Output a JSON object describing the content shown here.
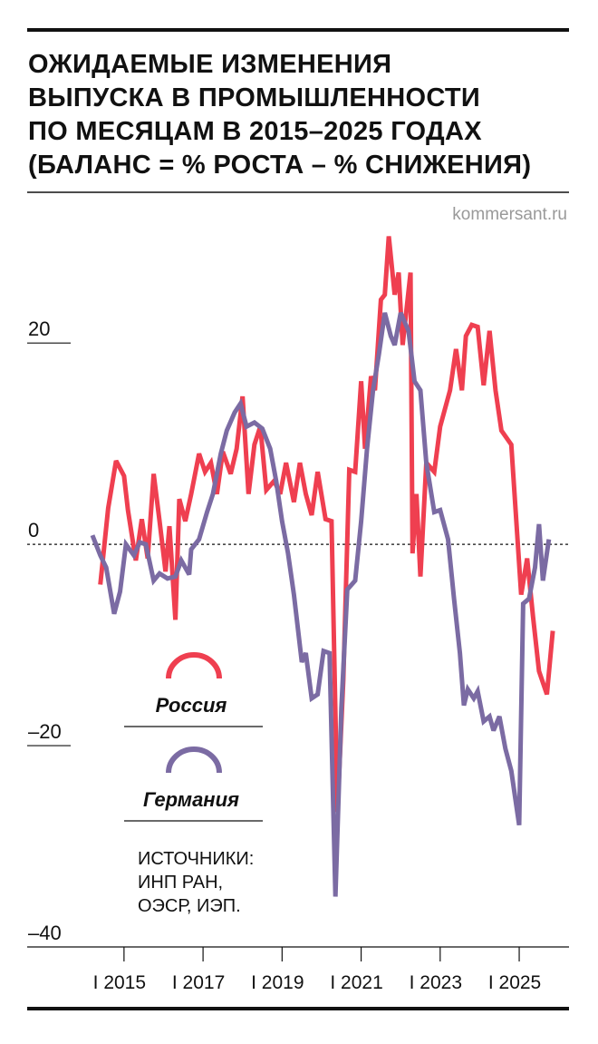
{
  "chart_data": {
    "type": "line",
    "title": [
      "ОЖИДАЕМЫЕ ИЗМЕНЕНИЯ",
      "ВЫПУСКА В ПРОМЫШЛЕННОСТИ",
      "ПО МЕСЯЦАМ В 2015–2025 ГОДАХ",
      "(БАЛАНС = % РОСТА – % СНИЖЕНИЯ)"
    ],
    "credit": "kommersant.ru",
    "source": [
      "ИСТОЧНИКИ:",
      "ИНП РАН,",
      "ОЭСР, ИЭП."
    ],
    "xlim": [
      2012.55,
      2026.26
    ],
    "xticks": [
      {
        "value": 2015,
        "label": "I 2015"
      },
      {
        "value": 2017,
        "label": "I 2017"
      },
      {
        "value": 2019,
        "label": "I 2019"
      },
      {
        "value": 2021,
        "label": "I 2021"
      },
      {
        "value": 2023,
        "label": "I 2023"
      },
      {
        "value": 2025,
        "label": "I 2025"
      }
    ],
    "ylim": [
      -40,
      32
    ],
    "yticks": [
      {
        "value": -40,
        "label": "–40"
      },
      {
        "value": -20,
        "label": "–20"
      },
      0,
      20
    ],
    "series": [
      {
        "name": "Россия",
        "color": "#ef3f50",
        "x": [
          2014.4,
          2014.6,
          2014.8,
          2015.0,
          2015.1,
          2015.3,
          2015.45,
          2015.6,
          2015.75,
          2015.9,
          2016.05,
          2016.15,
          2016.3,
          2016.4,
          2016.55,
          2016.7,
          2016.9,
          2017.05,
          2017.2,
          2017.35,
          2017.5,
          2017.7,
          2017.85,
          2018.0,
          2018.15,
          2018.3,
          2018.45,
          2018.6,
          2018.8,
          2018.95,
          2019.1,
          2019.3,
          2019.45,
          2019.6,
          2019.75,
          2019.9,
          2020.1,
          2020.25,
          2020.4,
          2020.55,
          2020.7,
          2020.85,
          2021.0,
          2021.1,
          2021.25,
          2021.35,
          2021.5,
          2021.6,
          2021.7,
          2021.85,
          2021.95,
          2022.05,
          2022.25,
          2022.3,
          2022.4,
          2022.5,
          2022.65,
          2022.85,
          2023.0,
          2023.25,
          2023.4,
          2023.55,
          2023.65,
          2023.8,
          2023.95,
          2024.1,
          2024.25,
          2024.4,
          2024.55,
          2024.8,
          2025.05,
          2025.2,
          2025.35,
          2025.5,
          2025.7,
          2025.85
        ],
        "values": [
          -4,
          3.6,
          8.3,
          6.8,
          3.4,
          -1.6,
          2.5,
          -1.4,
          7,
          2.3,
          -2.7,
          1.8,
          -7.5,
          4.5,
          2.3,
          5,
          9,
          7.2,
          8.1,
          5,
          9.2,
          7,
          9.5,
          14.7,
          5,
          9.9,
          11.7,
          5.4,
          6.3,
          5,
          8.1,
          4.2,
          8.1,
          5,
          2.9,
          7.2,
          2.5,
          2.3,
          -26.6,
          -13.5,
          7.4,
          7.2,
          16.2,
          9.5,
          16.7,
          15.3,
          24.3,
          24.8,
          30.6,
          24.8,
          27,
          19.8,
          27,
          -0.9,
          5,
          -3.2,
          8.1,
          7.2,
          11.7,
          15.3,
          19.4,
          15.3,
          20.7,
          21.8,
          21.6,
          15.8,
          21.2,
          15.3,
          11.3,
          9.9,
          -5,
          -1.4,
          -7.2,
          -12.6,
          -14.9,
          -8.6
        ]
      },
      {
        "name": "Германия",
        "color": "#7b6ba3",
        "x": [
          2014.2,
          2014.4,
          2014.55,
          2014.75,
          2014.9,
          2015.05,
          2015.25,
          2015.4,
          2015.55,
          2015.75,
          2015.9,
          2016.1,
          2016.3,
          2016.45,
          2016.65,
          2016.7,
          2016.9,
          2017.1,
          2017.25,
          2017.45,
          2017.6,
          2017.8,
          2017.95,
          2018.1,
          2018.3,
          2018.5,
          2018.7,
          2018.85,
          2019.0,
          2019.15,
          2019.3,
          2019.5,
          2019.6,
          2019.75,
          2019.9,
          2020.05,
          2020.2,
          2020.35,
          2020.5,
          2020.65,
          2020.85,
          2021.0,
          2021.15,
          2021.3,
          2021.45,
          2021.6,
          2021.75,
          2021.85,
          2022.0,
          2022.2,
          2022.35,
          2022.5,
          2022.65,
          2022.85,
          2023.0,
          2023.2,
          2023.35,
          2023.5,
          2023.6,
          2023.7,
          2023.85,
          2023.95,
          2024.1,
          2024.25,
          2024.35,
          2024.5,
          2024.65,
          2024.8,
          2025.0,
          2025.1,
          2025.25,
          2025.4,
          2025.5,
          2025.6,
          2025.75
        ],
        "values": [
          0.9,
          -1.1,
          -2.3,
          -6.9,
          -4.7,
          0,
          -1.1,
          0.2,
          0,
          -3.6,
          -2.9,
          -3.4,
          -3.2,
          -1.6,
          -3,
          -0.5,
          0.5,
          3.2,
          5,
          9,
          11.3,
          13.1,
          14,
          11.7,
          12.1,
          11.5,
          9.5,
          6.3,
          2.3,
          -0.9,
          -5,
          -11.7,
          -10.8,
          -15.3,
          -14.9,
          -10.6,
          -10.8,
          -35,
          -16.2,
          -4.5,
          -3.6,
          2.3,
          9.5,
          15.3,
          18.9,
          23,
          20.7,
          19.8,
          23,
          21.2,
          16.2,
          15.3,
          8.1,
          3.2,
          3.4,
          0.5,
          -5.4,
          -10.8,
          -16,
          -14.4,
          -15.3,
          -14.6,
          -17.6,
          -17.1,
          -18.5,
          -17.1,
          -20.3,
          -22.5,
          -27.9,
          -5.9,
          -5.4,
          -2.3,
          2,
          -3.6,
          0.5
        ]
      }
    ]
  }
}
